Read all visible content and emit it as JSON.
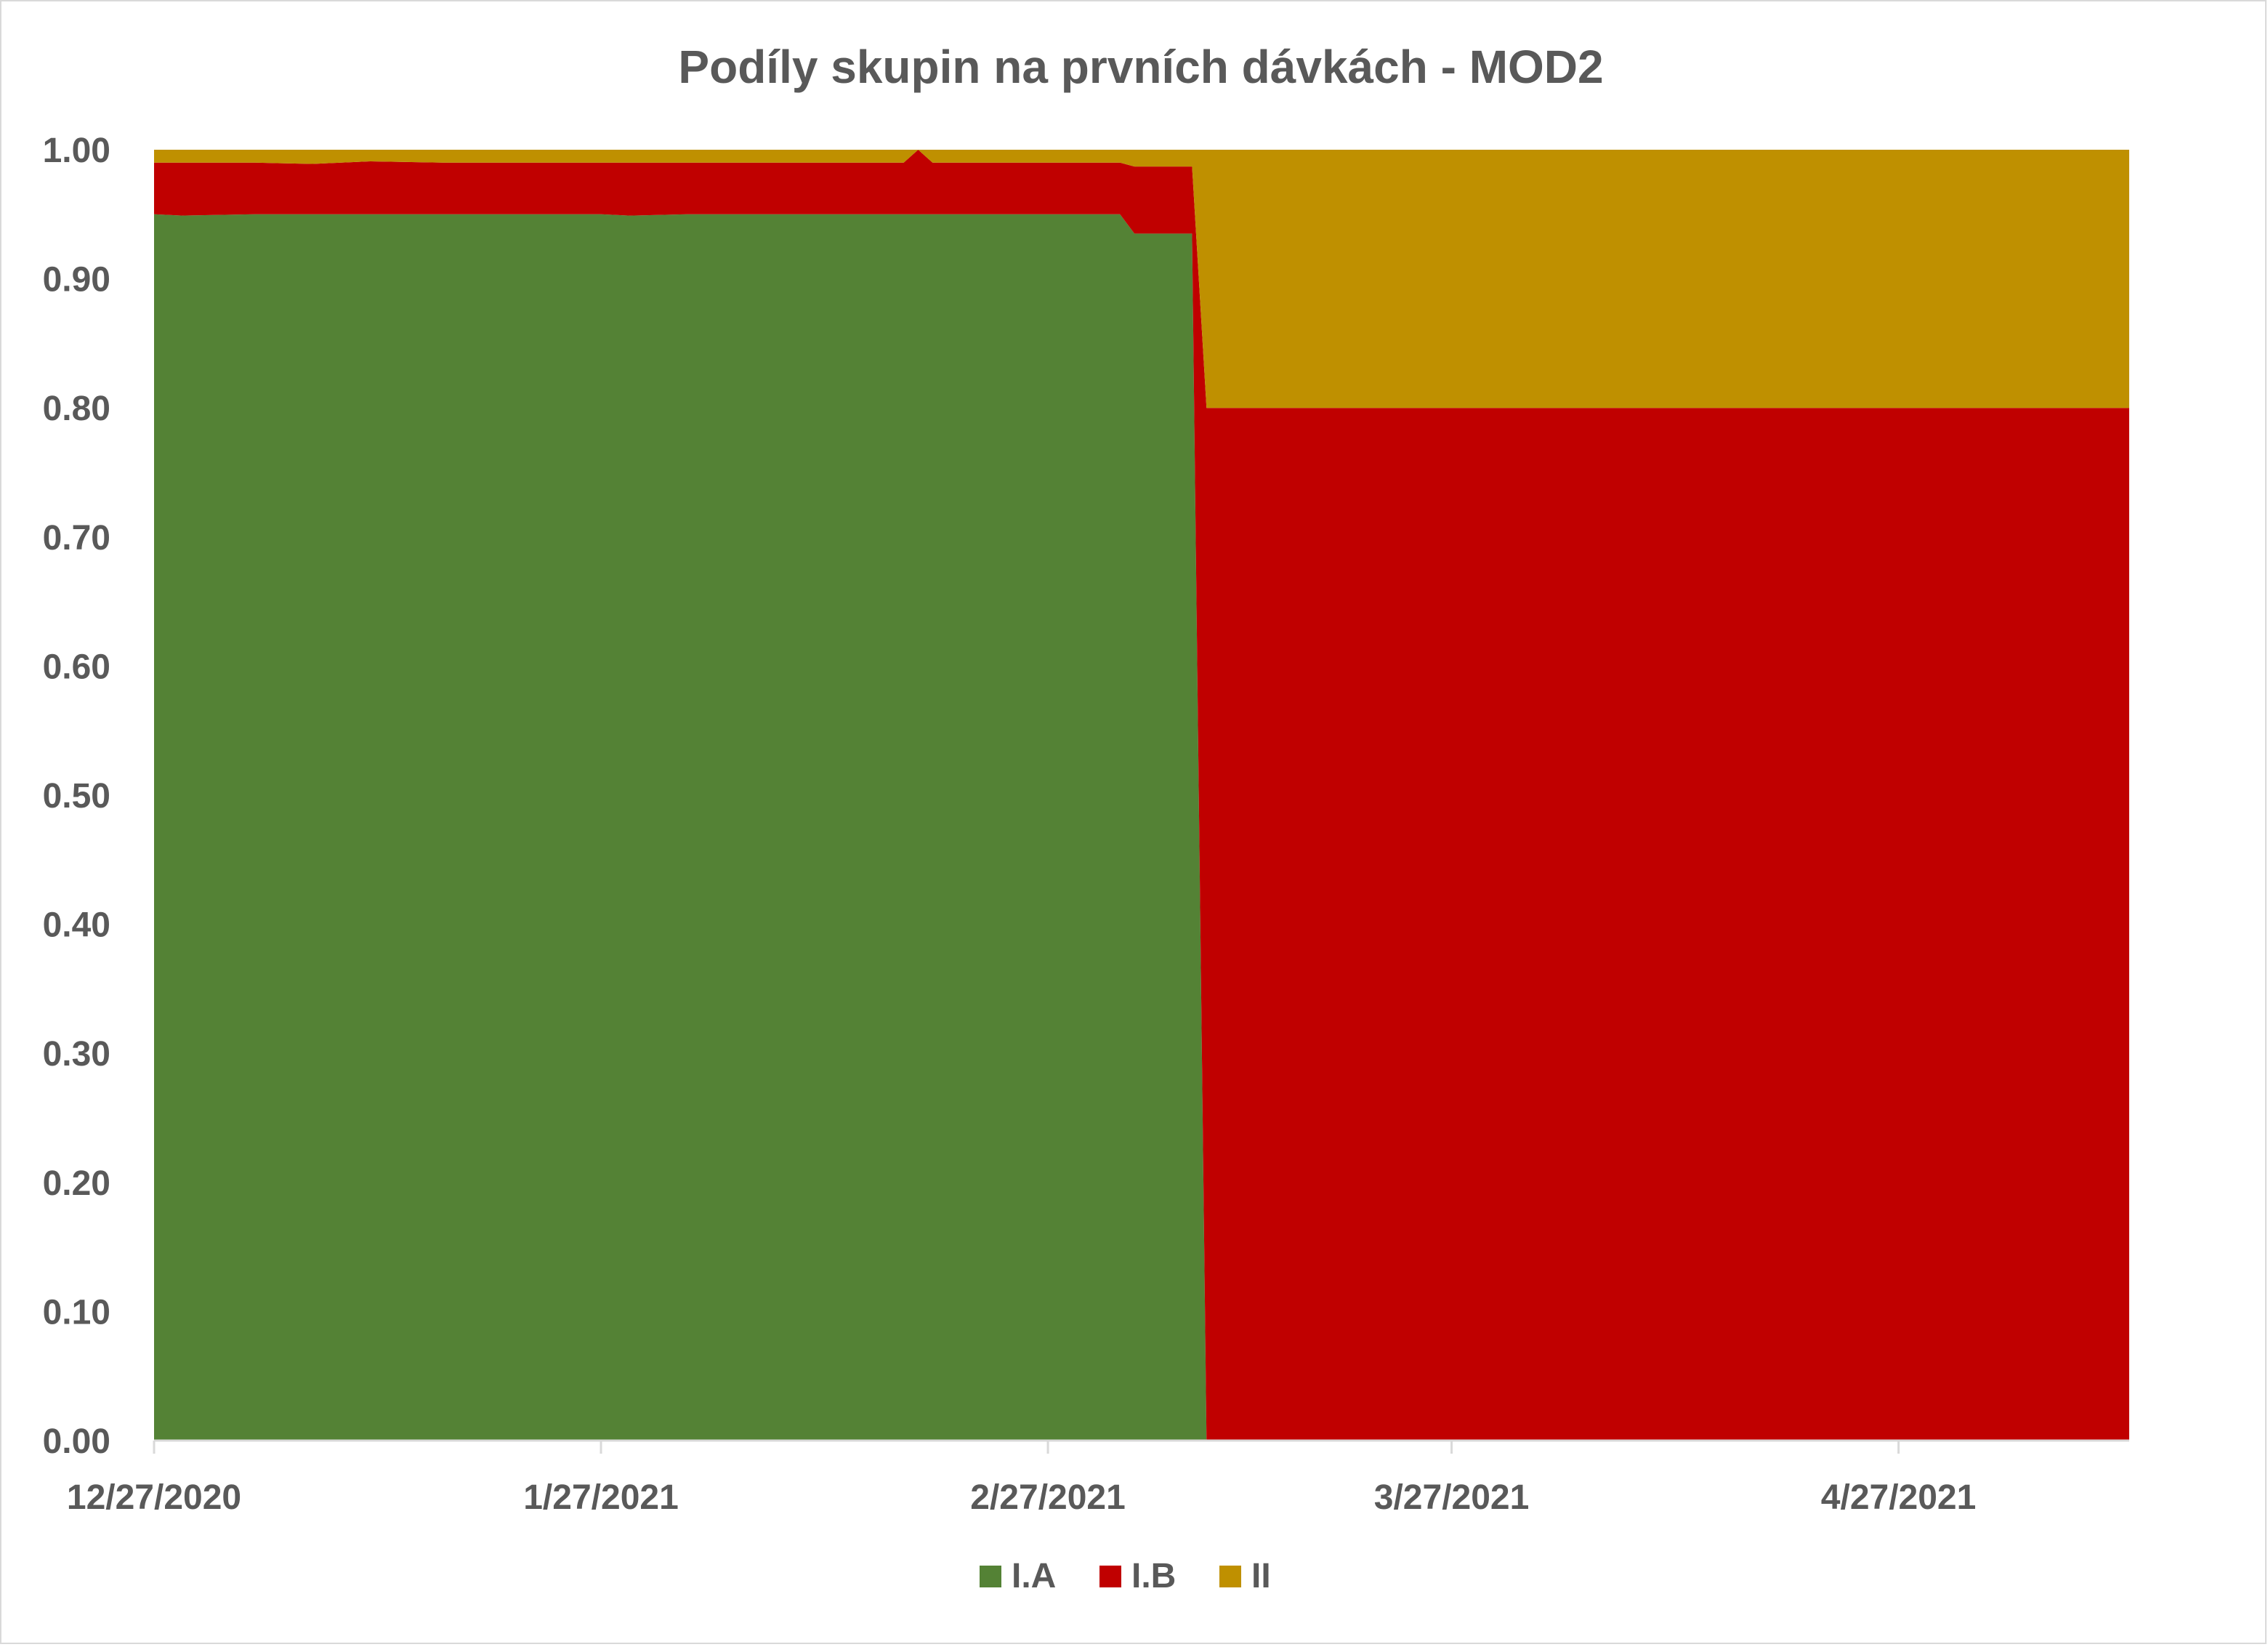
{
  "chart_data": {
    "type": "area",
    "stacked": true,
    "title": "Podíly skupin na prvních dávkách - MOD2",
    "xlabel": "",
    "ylabel": "",
    "x_start": "12/27/2020",
    "x_end": "5/13/2021",
    "ylim": [
      0,
      1
    ],
    "y_ticks": [
      "0.00",
      "0.10",
      "0.20",
      "0.30",
      "0.40",
      "0.50",
      "0.60",
      "0.70",
      "0.80",
      "0.90",
      "1.00"
    ],
    "x_ticks": [
      "12/27/2020",
      "1/27/2021",
      "2/27/2021",
      "3/27/2021",
      "4/27/2021"
    ],
    "grid": false,
    "legend_position": "bottom",
    "x": [
      "12/27/2020",
      "12/29/2020",
      "1/3/2021",
      "1/7/2021",
      "1/11/2021",
      "1/16/2021",
      "1/27/2021",
      "1/29/2021",
      "2/2/2021",
      "2/10/2021",
      "2/17/2021",
      "2/18/2021",
      "2/19/2021",
      "2/27/2021",
      "3/4/2021",
      "3/5/2021",
      "3/8/2021",
      "3/9/2021",
      "3/10/2021",
      "3/27/2021",
      "4/27/2021",
      "5/13/2021"
    ],
    "series": [
      {
        "name": "I.A",
        "color": "#548235",
        "values": [
          0.95,
          0.949,
          0.95,
          0.95,
          0.95,
          0.95,
          0.95,
          0.949,
          0.95,
          0.95,
          0.95,
          0.95,
          0.95,
          0.95,
          0.95,
          0.935,
          0.935,
          0.935,
          0.0,
          0.0,
          0.0,
          0.0
        ]
      },
      {
        "name": "I.B",
        "color": "#c00000",
        "values": [
          0.04,
          0.041,
          0.04,
          0.039,
          0.041,
          0.04,
          0.04,
          0.041,
          0.04,
          0.04,
          0.04,
          0.05,
          0.04,
          0.04,
          0.04,
          0.052,
          0.052,
          0.052,
          0.8,
          0.8,
          0.8,
          0.8
        ]
      },
      {
        "name": "II",
        "color": "#bf9000",
        "values": [
          0.01,
          0.01,
          0.01,
          0.011,
          0.009,
          0.01,
          0.01,
          0.01,
          0.01,
          0.01,
          0.01,
          0.0,
          0.01,
          0.01,
          0.01,
          0.013,
          0.013,
          0.013,
          0.2,
          0.2,
          0.2,
          0.2
        ]
      }
    ]
  }
}
